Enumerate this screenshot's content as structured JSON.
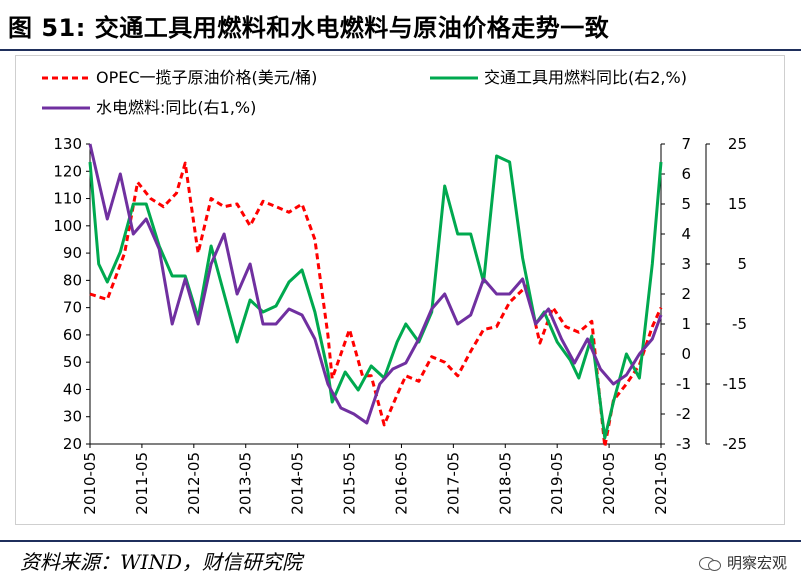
{
  "page": {
    "title": "图 51: 交通工具用燃料和水电燃料与原油价格走势一致",
    "source": "资料来源：WIND，财信研究院",
    "brand": "明察宏观",
    "brand_icon": "wechat-icon"
  },
  "chart_data": {
    "type": "line",
    "title": "",
    "legend_placement": "top",
    "grid": false,
    "x_ticks": [
      "2010-05",
      "2011-05",
      "2012-05",
      "2013-05",
      "2014-05",
      "2015-05",
      "2016-05",
      "2017-05",
      "2018-05",
      "2019-05",
      "2020-05",
      "2021-05"
    ],
    "x_range": [
      "2010-05",
      "2021-05"
    ],
    "axes": {
      "left": {
        "range": [
          20,
          130
        ],
        "ticks": [
          "130",
          "120",
          "110",
          "100",
          "90",
          "80",
          "70",
          "60",
          "50",
          "40",
          "30",
          "20"
        ]
      },
      "right1": {
        "range": [
          -3,
          7
        ],
        "ticks": [
          "7",
          "6",
          "5",
          "4",
          "3",
          "2",
          "1",
          "0",
          "-1",
          "-2",
          "-3"
        ]
      },
      "right2": {
        "range": [
          -25,
          25
        ],
        "ticks": [
          "25",
          "15",
          "5",
          "-5",
          "-15",
          "-25"
        ]
      }
    },
    "series": [
      {
        "name": "OPEC一揽子原油价格(美元/桶)",
        "axis": "left",
        "color": "#ff0000",
        "dash": true,
        "points": [
          [
            "2010-05",
            75
          ],
          [
            "2010-09",
            73
          ],
          [
            "2011-01",
            90
          ],
          [
            "2011-04",
            116
          ],
          [
            "2011-07",
            110
          ],
          [
            "2011-10",
            107
          ],
          [
            "2012-01",
            112
          ],
          [
            "2012-03",
            123
          ],
          [
            "2012-06",
            90
          ],
          [
            "2012-09",
            110
          ],
          [
            "2012-12",
            107
          ],
          [
            "2013-03",
            108
          ],
          [
            "2013-06",
            100
          ],
          [
            "2013-09",
            109
          ],
          [
            "2013-12",
            107
          ],
          [
            "2014-03",
            105
          ],
          [
            "2014-06",
            108
          ],
          [
            "2014-09",
            95
          ],
          [
            "2014-12",
            60
          ],
          [
            "2015-01",
            44
          ],
          [
            "2015-03",
            53
          ],
          [
            "2015-05",
            62
          ],
          [
            "2015-08",
            45
          ],
          [
            "2015-10",
            45
          ],
          [
            "2016-01",
            27
          ],
          [
            "2016-04",
            38
          ],
          [
            "2016-06",
            45
          ],
          [
            "2016-09",
            43
          ],
          [
            "2016-12",
            52
          ],
          [
            "2017-03",
            50
          ],
          [
            "2017-06",
            45
          ],
          [
            "2017-09",
            54
          ],
          [
            "2017-12",
            62
          ],
          [
            "2018-03",
            63
          ],
          [
            "2018-06",
            72
          ],
          [
            "2018-10",
            78
          ],
          [
            "2019-01",
            57
          ],
          [
            "2019-04",
            70
          ],
          [
            "2019-07",
            63
          ],
          [
            "2019-10",
            61
          ],
          [
            "2020-01",
            65
          ],
          [
            "2020-04",
            19
          ],
          [
            "2020-06",
            36
          ],
          [
            "2020-09",
            42
          ],
          [
            "2020-12",
            49
          ],
          [
            "2021-03",
            63
          ],
          [
            "2021-05",
            70
          ]
        ]
      },
      {
        "name": "交通工具用燃料同比(右2,%)",
        "axis": "right2",
        "color": "#00a94f",
        "dash": false,
        "points": [
          [
            "2010-05",
            22
          ],
          [
            "2010-07",
            5
          ],
          [
            "2010-09",
            2
          ],
          [
            "2010-12",
            7
          ],
          [
            "2011-03",
            15
          ],
          [
            "2011-06",
            15
          ],
          [
            "2011-09",
            8
          ],
          [
            "2011-12",
            3
          ],
          [
            "2012-03",
            3
          ],
          [
            "2012-06",
            -4
          ],
          [
            "2012-09",
            8
          ],
          [
            "2012-12",
            0
          ],
          [
            "2013-03",
            -8
          ],
          [
            "2013-06",
            -1
          ],
          [
            "2013-09",
            -3
          ],
          [
            "2013-12",
            -2
          ],
          [
            "2014-03",
            2
          ],
          [
            "2014-06",
            4
          ],
          [
            "2014-09",
            -3
          ],
          [
            "2014-12",
            -13
          ],
          [
            "2015-01",
            -18
          ],
          [
            "2015-04",
            -13
          ],
          [
            "2015-07",
            -16
          ],
          [
            "2015-10",
            -12
          ],
          [
            "2016-01",
            -14
          ],
          [
            "2016-04",
            -8
          ],
          [
            "2016-06",
            -5
          ],
          [
            "2016-09",
            -8
          ],
          [
            "2016-12",
            -3
          ],
          [
            "2017-03",
            18
          ],
          [
            "2017-06",
            10
          ],
          [
            "2017-09",
            10
          ],
          [
            "2017-12",
            2
          ],
          [
            "2018-03",
            23
          ],
          [
            "2018-06",
            22
          ],
          [
            "2018-09",
            6
          ],
          [
            "2018-12",
            -5
          ],
          [
            "2019-02",
            -3
          ],
          [
            "2019-05",
            -8
          ],
          [
            "2019-08",
            -11
          ],
          [
            "2019-10",
            -14
          ],
          [
            "2020-01",
            -7
          ],
          [
            "2020-04",
            -24
          ],
          [
            "2020-06",
            -18
          ],
          [
            "2020-09",
            -10
          ],
          [
            "2020-12",
            -14
          ],
          [
            "2021-03",
            5
          ],
          [
            "2021-05",
            22
          ]
        ]
      },
      {
        "name": "水电燃料:同比(右1,%)",
        "axis": "right1",
        "color": "#7030a0",
        "dash": false,
        "points": [
          [
            "2010-05",
            7
          ],
          [
            "2010-09",
            4.5
          ],
          [
            "2010-12",
            6
          ],
          [
            "2011-03",
            4
          ],
          [
            "2011-06",
            4.5
          ],
          [
            "2011-09",
            3.5
          ],
          [
            "2011-12",
            1
          ],
          [
            "2012-03",
            2.5
          ],
          [
            "2012-06",
            1
          ],
          [
            "2012-09",
            3
          ],
          [
            "2012-12",
            4
          ],
          [
            "2013-03",
            2
          ],
          [
            "2013-06",
            3
          ],
          [
            "2013-09",
            1
          ],
          [
            "2013-12",
            1
          ],
          [
            "2014-03",
            1.5
          ],
          [
            "2014-06",
            1.3
          ],
          [
            "2014-09",
            0.5
          ],
          [
            "2014-12",
            -1
          ],
          [
            "2015-03",
            -1.8
          ],
          [
            "2015-06",
            -2
          ],
          [
            "2015-09",
            -2.3
          ],
          [
            "2015-12",
            -1
          ],
          [
            "2016-03",
            -0.5
          ],
          [
            "2016-06",
            -0.3
          ],
          [
            "2016-09",
            0.5
          ],
          [
            "2016-12",
            1.5
          ],
          [
            "2017-03",
            2
          ],
          [
            "2017-06",
            1
          ],
          [
            "2017-09",
            1.3
          ],
          [
            "2017-12",
            2.5
          ],
          [
            "2018-03",
            2
          ],
          [
            "2018-06",
            2
          ],
          [
            "2018-09",
            2.5
          ],
          [
            "2018-12",
            1
          ],
          [
            "2019-03",
            1.5
          ],
          [
            "2019-06",
            0.5
          ],
          [
            "2019-09",
            -0.3
          ],
          [
            "2019-12",
            0.5
          ],
          [
            "2020-03",
            -0.5
          ],
          [
            "2020-06",
            -1
          ],
          [
            "2020-09",
            -0.7
          ],
          [
            "2020-12",
            0
          ],
          [
            "2021-03",
            0.5
          ],
          [
            "2021-05",
            1.3
          ]
        ]
      }
    ]
  }
}
